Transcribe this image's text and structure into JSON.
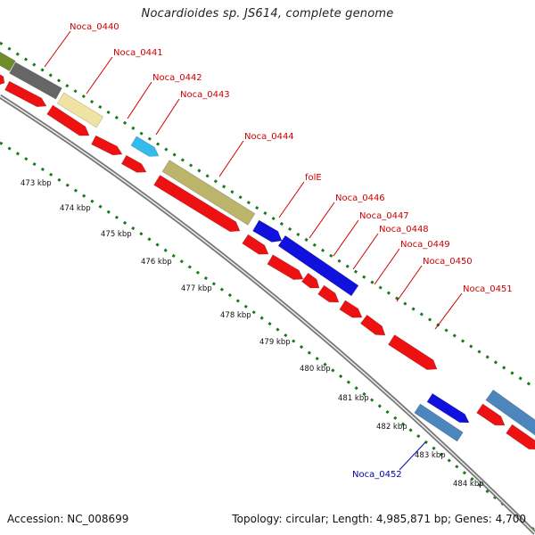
{
  "title": "Nocardioides sp. JS614, complete genome",
  "footer": {
    "accession": "Accession: NC_008699",
    "summary": "Topology: circular; Length: 4,985,871 bp; Genes: 4,700"
  },
  "colors": {
    "forward_track": "#1a7a1a",
    "reverse_track": "#1a7a1a",
    "backbone": "#9a9a9a",
    "gene_red": "#ee1111",
    "gene_olive": "#bcb46b",
    "gene_blue": "#1111dd",
    "gene_cyan": "#33bbee",
    "gene_steel": "#4d86bc",
    "gene_gray": "#666666",
    "gene_khaki": "#f0e2a0",
    "gene_green": "#6f8c2a",
    "label_red": "#cc0000",
    "label_blue": "#0000aa"
  },
  "gene_labels": [
    {
      "id": "noca-0440",
      "text": "Noca_0440",
      "color": "red"
    },
    {
      "id": "noca-0441",
      "text": "Noca_0441",
      "color": "red"
    },
    {
      "id": "noca-0442",
      "text": "Noca_0442",
      "color": "red"
    },
    {
      "id": "noca-0443",
      "text": "Noca_0443",
      "color": "red"
    },
    {
      "id": "noca-0444",
      "text": "Noca_0444",
      "color": "red"
    },
    {
      "id": "fole",
      "text": "folE",
      "color": "red"
    },
    {
      "id": "noca-0446",
      "text": "Noca_0446",
      "color": "red"
    },
    {
      "id": "noca-0447",
      "text": "Noca_0447",
      "color": "red"
    },
    {
      "id": "noca-0448",
      "text": "Noca_0448",
      "color": "red"
    },
    {
      "id": "noca-0449",
      "text": "Noca_0449",
      "color": "red"
    },
    {
      "id": "noca-0450",
      "text": "Noca_0450",
      "color": "red"
    },
    {
      "id": "noca-0451",
      "text": "Noca_0451",
      "color": "red"
    },
    {
      "id": "noca-0452",
      "text": "Noca_0452",
      "color": "blue"
    }
  ],
  "kbp_ticks": [
    "473 kbp",
    "474 kbp",
    "475 kbp",
    "476 kbp",
    "477 kbp",
    "478 kbp",
    "479 kbp",
    "480 kbp",
    "481 kbp",
    "482 kbp",
    "483 kbp",
    "484 kbp"
  ]
}
